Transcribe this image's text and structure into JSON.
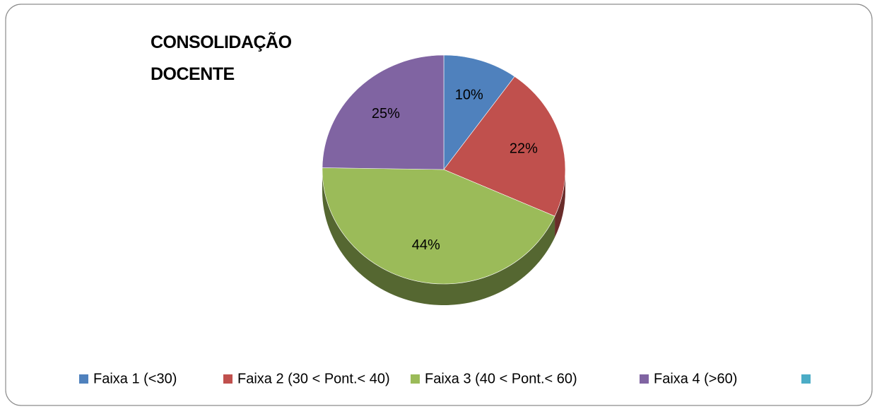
{
  "chart_data": {
    "type": "pie",
    "title": "CONSOLIDAÇÃO DOCENTE",
    "categories": [
      "Faixa 1 (<30)",
      "Faixa 2 (30 < Pont.< 40)",
      "Faixa 3 (40 < Pont.< 60)",
      "Faixa 4 (>60)",
      null
    ],
    "values": [
      10,
      22,
      44,
      25,
      null
    ],
    "value_labels": [
      "10%",
      "22%",
      "44%",
      "25%",
      null
    ],
    "colors": [
      "#4f81bd",
      "#c0504d",
      "#9bbb59",
      "#8064a2",
      "#4bacc6"
    ],
    "legend": "bottom"
  }
}
